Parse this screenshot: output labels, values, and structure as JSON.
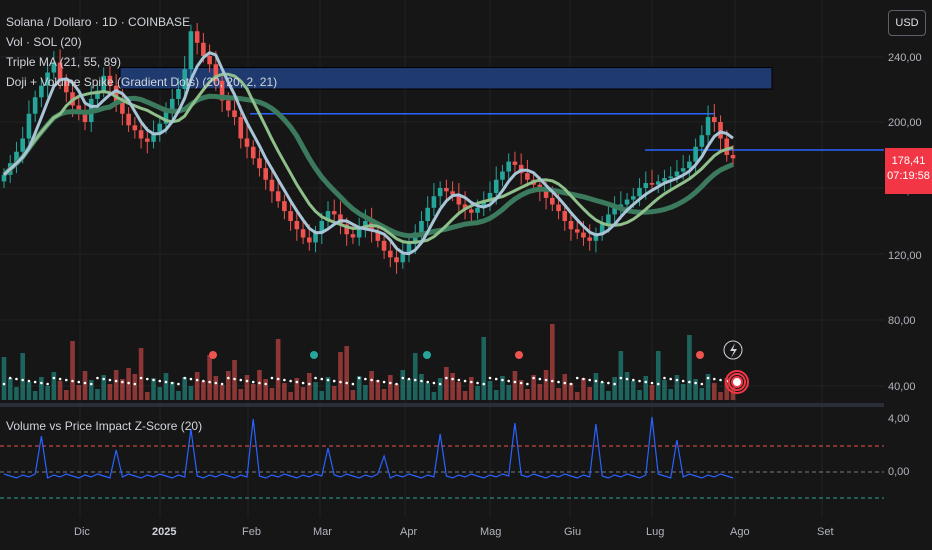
{
  "header": {
    "symbol_line": "Solana / Dollaro · 1D · COINBASE",
    "vol_line": "Vol · SOL (20)",
    "ma_line": "Triple MA (21, 55, 89)",
    "doji_line": "Doji + Volume Spike (Gradient Dots) (20, 20, 2, 21)"
  },
  "subpane": {
    "title": "Volume vs Price Impact Z-Score (20)"
  },
  "price_axis": {
    "currency_button": "USD",
    "ticks": [
      "240,00",
      "200,00",
      "160,00",
      "120,00",
      "80,00",
      "40,00"
    ],
    "last_price": "178,41",
    "countdown": "07:19:58",
    "sub_ticks": [
      "4,00",
      "0,00"
    ]
  },
  "time_axis": {
    "labels": [
      "Dic",
      "2025",
      "Feb",
      "Mar",
      "Apr",
      "Mag",
      "Giu",
      "Lug",
      "Ago",
      "Set"
    ]
  },
  "colors": {
    "up": "#26a69a",
    "down": "#ef5350",
    "ma_fast": "#a8c5d8",
    "ma_mid": "#8fbf8a",
    "ma_slow": "#3c7a5e",
    "zscore": "#2962ff",
    "zone": "#1e3a6e",
    "last_price_bg": "#f23645"
  },
  "chart_data": {
    "type": "candlestick",
    "price_range": [
      20,
      270
    ],
    "closes": [
      168,
      175,
      182,
      190,
      205,
      215,
      222,
      230,
      236,
      225,
      218,
      210,
      205,
      200,
      214,
      219,
      228,
      222,
      212,
      205,
      198,
      195,
      190,
      188,
      193,
      199,
      207,
      214,
      220,
      232,
      255,
      248,
      240,
      235,
      225,
      213,
      207,
      203,
      190,
      185,
      178,
      172,
      165,
      158,
      152,
      146,
      140,
      135,
      130,
      127,
      133,
      140,
      146,
      144,
      138,
      132,
      130,
      136,
      140,
      134,
      128,
      122,
      118,
      115,
      120,
      126,
      133,
      140,
      148,
      155,
      160,
      158,
      156,
      150,
      147,
      145,
      148,
      152,
      157,
      165,
      170,
      176,
      174,
      169,
      165,
      162,
      158,
      154,
      150,
      146,
      140,
      135,
      133,
      130,
      128,
      132,
      138,
      144,
      148,
      150,
      153,
      155,
      160,
      163,
      162,
      164,
      166,
      167,
      170,
      172,
      176,
      185,
      192,
      203,
      200,
      190,
      180,
      178
    ],
    "hline_levels": [
      205,
      183
    ],
    "zone": [
      220,
      233
    ]
  }
}
